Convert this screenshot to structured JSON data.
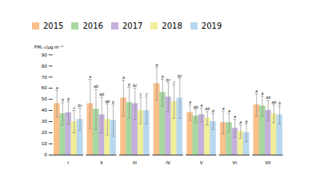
{
  "chart_data": {
    "type": "bar",
    "categories": [
      "I",
      "II",
      "III",
      "IV",
      "V",
      "VI",
      "VII"
    ],
    "series": [
      {
        "name": "2015",
        "color": "#FBBF8A",
        "values": [
          46,
          46,
          51,
          64,
          38,
          29,
          45
        ],
        "errors": [
          12,
          22,
          16,
          15,
          7,
          10,
          10
        ],
        "significance": [
          "a",
          "a",
          "a",
          "a",
          "a",
          "a",
          "a"
        ]
      },
      {
        "name": "2016",
        "color": "#A8D8A0",
        "values": [
          37,
          41,
          47,
          56,
          35,
          29,
          44
        ],
        "errors": [
          10,
          18,
          14,
          12,
          6,
          8,
          9
        ],
        "significance": [
          "b",
          "ab",
          "b",
          "b",
          "ab",
          "a",
          "a"
        ]
      },
      {
        "name": "2017",
        "color": "#C4B0DC",
        "values": [
          38,
          36,
          46,
          52,
          36,
          24,
          40
        ],
        "errors": [
          10,
          16,
          14,
          13,
          6,
          8,
          9
        ],
        "significance": [
          "b",
          "ab",
          "bc",
          "bc",
          "a",
          "a",
          "ab"
        ]
      },
      {
        "name": "2018",
        "color": "#F0EE9A",
        "values": [
          30,
          32,
          40,
          48,
          33,
          21,
          37
        ],
        "errors": [
          10,
          14,
          12,
          15,
          6,
          6,
          8
        ],
        "significance": [
          "c",
          "ab",
          "c",
          "c",
          "ab",
          "a",
          "ab"
        ]
      },
      {
        "name": "2019",
        "color": "#B8D8F0",
        "values": [
          32,
          31,
          40,
          51,
          30,
          20,
          36
        ],
        "errors": [
          10,
          14,
          12,
          18,
          7,
          8,
          8
        ],
        "significance": [
          "bc",
          "b",
          "c",
          "bc",
          "b",
          "a",
          "b"
        ]
      }
    ],
    "ylabel": "PM₂.₅/μg·m⁻³",
    "ylim": [
      0,
      90
    ],
    "yticks": [
      0,
      10,
      20,
      30,
      40,
      50,
      60,
      70,
      80,
      90
    ],
    "grid": false,
    "legend": "top"
  }
}
